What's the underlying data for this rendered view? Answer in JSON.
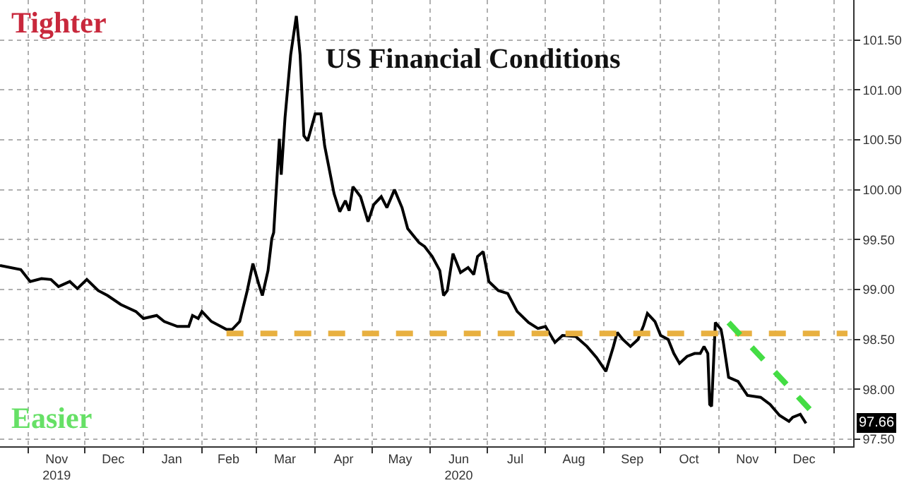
{
  "chart_data": {
    "type": "line",
    "title": "US Financial Conditions",
    "annotations": [
      "Tighter",
      "Easier",
      "97.66"
    ],
    "xlim": [
      "2019-10-17",
      "2021-01-11"
    ],
    "ylim": [
      97.43,
      101.9
    ],
    "yticks": [
      {
        "value": 97.5,
        "label": "97.50"
      },
      {
        "value": 98.0,
        "label": "98.00"
      },
      {
        "value": 98.5,
        "label": "98.50"
      },
      {
        "value": 99.0,
        "label": "99.00"
      },
      {
        "value": 99.5,
        "label": "99.50"
      },
      {
        "value": 100.0,
        "label": "100.00"
      },
      {
        "value": 100.5,
        "label": "100.50"
      },
      {
        "value": 101.0,
        "label": "101.00"
      },
      {
        "value": 101.5,
        "label": "101.50"
      }
    ],
    "xticks": [
      {
        "value": "2019-11-01",
        "label": null
      },
      {
        "value": "2019-12-01",
        "label": null
      },
      {
        "value": "2020-01-01",
        "label": null
      },
      {
        "value": "2020-02-01",
        "label": null
      },
      {
        "value": "2020-03-01",
        "label": null
      },
      {
        "value": "2020-04-01",
        "label": null
      },
      {
        "value": "2020-05-01",
        "label": null
      },
      {
        "value": "2020-06-01",
        "label": null
      },
      {
        "value": "2020-07-01",
        "label": null
      },
      {
        "value": "2020-08-01",
        "label": null
      },
      {
        "value": "2020-09-01",
        "label": null
      },
      {
        "value": "2020-10-01",
        "label": null
      },
      {
        "value": "2020-11-01",
        "label": null
      },
      {
        "value": "2020-12-01",
        "label": null
      },
      {
        "value": "2021-01-01",
        "label": null
      },
      {
        "value": "2019-11-16",
        "label": "Nov\n2019"
      },
      {
        "value": "2019-12-16",
        "label": "Dec"
      },
      {
        "value": "2020-01-16",
        "label": "Jan"
      },
      {
        "value": "2020-02-15",
        "label": "Feb"
      },
      {
        "value": "2020-03-16",
        "label": "Mar"
      },
      {
        "value": "2020-04-16",
        "label": "Apr"
      },
      {
        "value": "2020-05-16",
        "label": "May"
      },
      {
        "value": "2020-06-16",
        "label": "Jun\n2020"
      },
      {
        "value": "2020-07-16",
        "label": "Jul"
      },
      {
        "value": "2020-08-16",
        "label": "Aug"
      },
      {
        "value": "2020-09-16",
        "label": "Sep"
      },
      {
        "value": "2020-10-16",
        "label": "Oct"
      },
      {
        "value": "2020-11-16",
        "label": "Nov"
      },
      {
        "value": "2020-12-16",
        "label": "Dec"
      }
    ],
    "grid": true,
    "marker": "none",
    "series": [
      {
        "color": "#000000",
        "line_style": "solid",
        "x": [
          "2019-10-17",
          "2019-10-28",
          "2019-11-02",
          "2019-11-08",
          "2019-11-13",
          "2019-11-17",
          "2019-11-23",
          "2019-11-27",
          "2019-12-02",
          "2019-12-08",
          "2019-12-13",
          "2019-12-20",
          "2019-12-28",
          "2020-01-01",
          "2020-01-08",
          "2020-01-12",
          "2020-01-19",
          "2020-01-25",
          "2020-01-27",
          "2020-01-30",
          "2020-02-01",
          "2020-02-06",
          "2020-02-14",
          "2020-02-17",
          "2020-02-21",
          "2020-02-25",
          "2020-02-28",
          "2020-03-02",
          "2020-03-04",
          "2020-03-07",
          "2020-03-09",
          "2020-03-10",
          "2020-03-13",
          "2020-03-14",
          "2020-03-16",
          "2020-03-19",
          "2020-03-22",
          "2020-03-24",
          "2020-03-26",
          "2020-03-28",
          "2020-04-01",
          "2020-04-04",
          "2020-04-06",
          "2020-04-11",
          "2020-04-14",
          "2020-04-17",
          "2020-04-19",
          "2020-04-21",
          "2020-04-25",
          "2020-04-29",
          "2020-05-02",
          "2020-05-06",
          "2020-05-09",
          "2020-05-13",
          "2020-05-17",
          "2020-05-20",
          "2020-05-26",
          "2020-05-29",
          "2020-06-02",
          "2020-06-06",
          "2020-06-08",
          "2020-06-10",
          "2020-06-13",
          "2020-06-17",
          "2020-06-21",
          "2020-06-24",
          "2020-06-26",
          "2020-06-29",
          "2020-07-02",
          "2020-07-07",
          "2020-07-12",
          "2020-07-17",
          "2020-07-23",
          "2020-07-28",
          "2020-08-01",
          "2020-08-06",
          "2020-08-10",
          "2020-08-17",
          "2020-08-23",
          "2020-08-28",
          "2020-09-02",
          "2020-09-06",
          "2020-09-08",
          "2020-09-11",
          "2020-09-15",
          "2020-09-19",
          "2020-09-22",
          "2020-09-24",
          "2020-09-28",
          "2020-10-01",
          "2020-10-05",
          "2020-10-08",
          "2020-10-11",
          "2020-10-15",
          "2020-10-19",
          "2020-10-22",
          "2020-10-24",
          "2020-10-26",
          "2020-10-27",
          "2020-10-28",
          "2020-10-30",
          "2020-11-02",
          "2020-11-03",
          "2020-11-06",
          "2020-11-11",
          "2020-11-16",
          "2020-11-23",
          "2020-11-28",
          "2020-12-03",
          "2020-12-08",
          "2020-12-10",
          "2020-12-14",
          "2020-12-17"
        ],
        "values": [
          99.24,
          99.2,
          99.08,
          99.11,
          99.1,
          99.03,
          99.08,
          99.01,
          99.1,
          98.99,
          98.94,
          98.85,
          98.78,
          98.71,
          98.74,
          98.68,
          98.63,
          98.63,
          98.74,
          98.71,
          98.78,
          98.68,
          98.6,
          98.6,
          98.68,
          98.99,
          99.26,
          99.06,
          98.94,
          99.19,
          99.51,
          99.57,
          100.51,
          100.15,
          100.72,
          101.35,
          101.74,
          101.35,
          100.54,
          100.49,
          100.76,
          100.76,
          100.44,
          99.96,
          99.78,
          99.89,
          99.79,
          100.03,
          99.93,
          99.68,
          99.85,
          99.93,
          99.82,
          100.0,
          99.82,
          99.61,
          99.47,
          99.43,
          99.33,
          99.19,
          98.94,
          98.99,
          99.36,
          99.17,
          99.22,
          99.15,
          99.33,
          99.38,
          99.08,
          98.99,
          98.96,
          98.78,
          98.67,
          98.61,
          98.63,
          98.47,
          98.54,
          98.53,
          98.43,
          98.32,
          98.18,
          98.43,
          98.57,
          98.5,
          98.43,
          98.5,
          98.64,
          98.76,
          98.68,
          98.54,
          98.5,
          98.36,
          98.26,
          98.33,
          98.36,
          98.36,
          98.43,
          98.36,
          97.85,
          97.83,
          98.67,
          98.6,
          98.5,
          98.12,
          98.08,
          97.94,
          97.92,
          97.85,
          97.74,
          97.68,
          97.72,
          97.75,
          97.66
        ]
      },
      {
        "color": "#e8b040",
        "line_style": "dashed",
        "x": [
          "2020-02-14",
          "2021-01-08"
        ],
        "values": [
          98.56,
          98.56
        ]
      },
      {
        "color": "#44dd44",
        "line_style": "dashed",
        "x": [
          "2020-11-06",
          "2020-12-21"
        ],
        "values": [
          98.67,
          97.76
        ]
      }
    ]
  }
}
